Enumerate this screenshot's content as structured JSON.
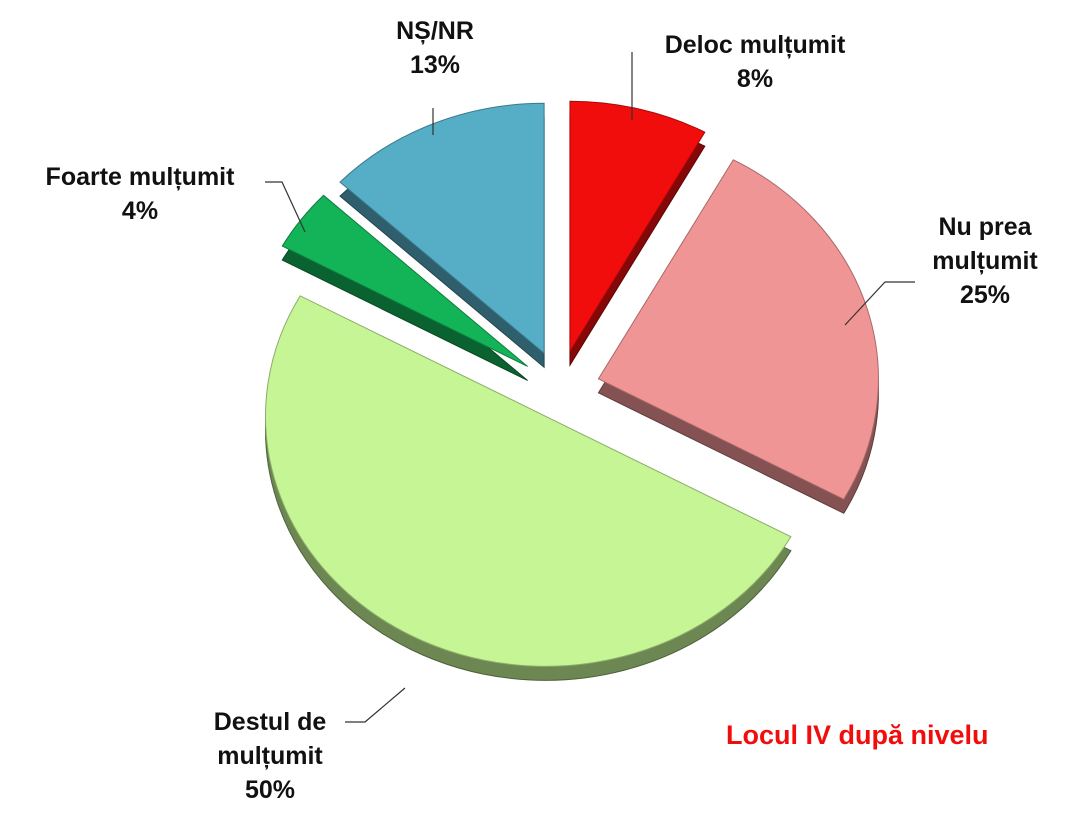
{
  "chart_data": {
    "type": "pie",
    "categories": [
      "Deloc mulțumit",
      "Nu prea mulțumit",
      "Destul de mulțumit",
      "Foarte mulțumit",
      "NȘ/NR"
    ],
    "values": [
      8,
      25,
      50,
      4,
      13
    ],
    "value_labels": [
      "8%",
      "25%",
      "50%",
      "4%",
      "13%"
    ],
    "colors": [
      "#f20d0d",
      "#f09595",
      "#c6f595",
      "#13b358",
      "#55adc6"
    ],
    "annotation": "Locul IV după nivelu"
  }
}
